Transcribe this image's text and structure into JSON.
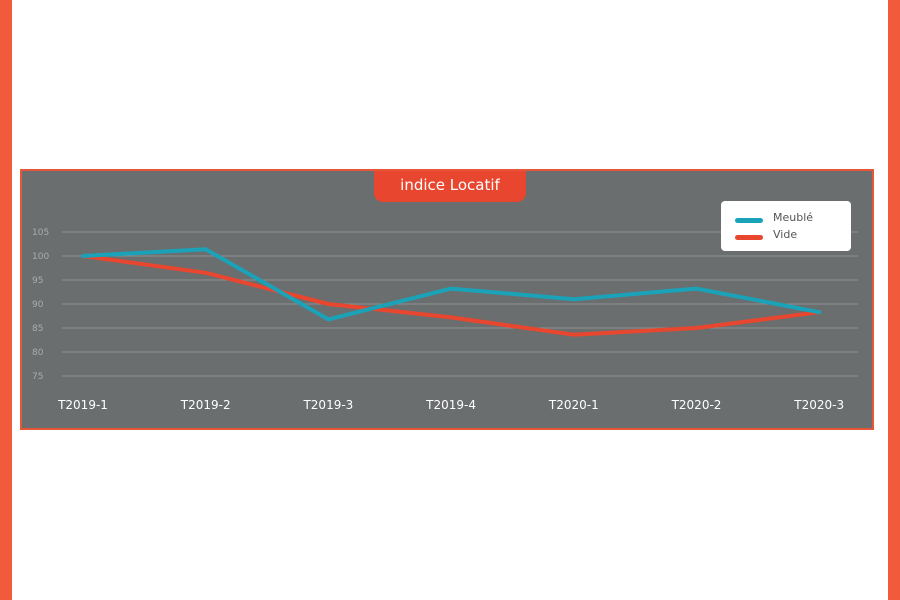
{
  "chart_data": {
    "type": "line",
    "title": "indice Locatif",
    "categories": [
      "T2019-1",
      "T2019-2",
      "T2019-3",
      "T2019-4",
      "T2020-1",
      "T2020-2",
      "T2020-3"
    ],
    "yticks": [
      105,
      100,
      95,
      90,
      85,
      80,
      75
    ],
    "ylim": [
      75,
      105
    ],
    "grid": true,
    "legend_position": "top-right",
    "series": [
      {
        "name": "Meublé",
        "color": "#1aa3b8",
        "values": [
          100,
          101.4,
          86.8,
          93.2,
          91,
          93.2,
          88.3
        ]
      },
      {
        "name": "Vide",
        "color": "#e8462f",
        "values": [
          100,
          96.5,
          90,
          87.2,
          83.6,
          85,
          88.3
        ]
      }
    ]
  },
  "colors": {
    "frame": "#f15a3a",
    "panel": "#6b6e6e",
    "gridline": "#8f9292"
  }
}
